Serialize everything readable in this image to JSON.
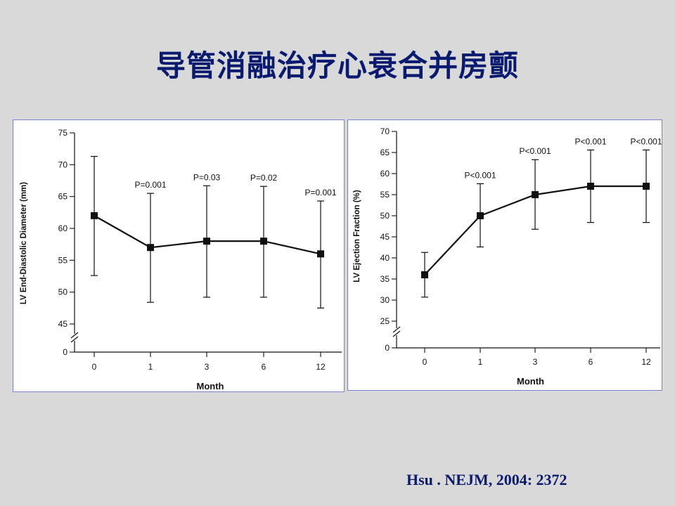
{
  "title": "导管消融治疗心衰合并房颤",
  "citation": "Hsu . NEJM, 2004: 2372",
  "chart_data": [
    {
      "type": "line",
      "xlabel": "Month",
      "ylabel": "LV End-Diastolic Diameter (mm)",
      "categories": [
        "0",
        "1",
        "3",
        "6",
        "12"
      ],
      "ylim": [
        45,
        75
      ],
      "y_ticks": [
        75,
        70,
        65,
        60,
        55,
        50,
        45
      ],
      "y_zero_label": "0",
      "axis_break": true,
      "series": [
        {
          "values": [
            62,
            57,
            58,
            58,
            56
          ],
          "error_low": [
            52.6,
            48.4,
            49.2,
            49.2,
            47.5
          ],
          "error_high": [
            71.3,
            65.5,
            66.7,
            66.6,
            64.3
          ]
        }
      ],
      "annotations": [
        "",
        "P=0.001",
        "P=0.03",
        "P=0.02",
        "P=0.001"
      ]
    },
    {
      "type": "line",
      "xlabel": "Month",
      "ylabel": "LV Ejection Fraction (%)",
      "categories": [
        "0",
        "1",
        "3",
        "6",
        "12"
      ],
      "ylim": [
        25,
        70
      ],
      "y_ticks": [
        70,
        65,
        60,
        55,
        50,
        45,
        40,
        35,
        30,
        25
      ],
      "y_zero_label": "0",
      "axis_break": true,
      "series": [
        {
          "values": [
            36,
            50,
            55,
            57,
            57
          ],
          "error_low": [
            30.7,
            42.6,
            46.8,
            48.4,
            48.4
          ],
          "error_high": [
            41.3,
            57.6,
            63.3,
            65.6,
            65.6
          ]
        }
      ],
      "annotations": [
        "",
        "P<0.001",
        "P<0.001",
        "P<0.001",
        "P<0.001"
      ]
    }
  ]
}
